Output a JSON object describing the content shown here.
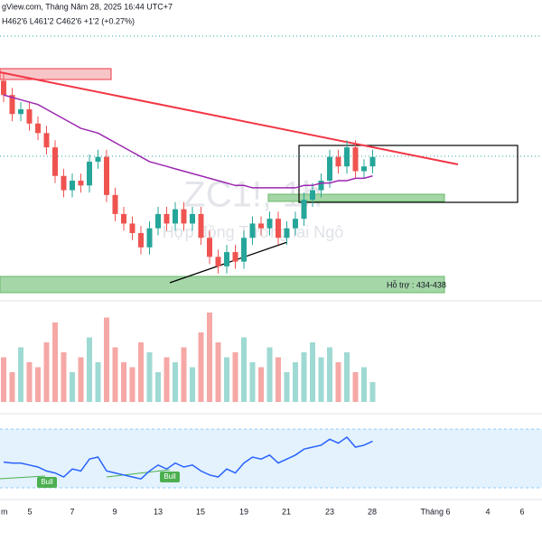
{
  "chart_data": {
    "type": "candlestick",
    "header": "gView.com, Tháng Năm 28, 2025 16:44 UTC+7",
    "ohlc_label": "H462'6  L461'2  C462'6  +1'2 (+0.27%)",
    "watermark": "ZC1!, 1h",
    "watermark_subtitle": "Hợp đồng Tương lai Ngô",
    "support_label": "Hỗ trợ : 434-438",
    "signal_labels": [
      "Bull",
      "Bull"
    ],
    "x_labels": [
      "m",
      "5",
      "7",
      "9",
      "13",
      "15",
      "19",
      "21",
      "23",
      "28",
      "Tháng 6",
      "4",
      "6"
    ],
    "ylim": [
      434,
      484
    ],
    "open": [
      479,
      476,
      472,
      473,
      470,
      468,
      465,
      459,
      456,
      458,
      457,
      462,
      463,
      455,
      451,
      449,
      447,
      444,
      448,
      451,
      449,
      452,
      449,
      451,
      446,
      442,
      440,
      443,
      441,
      446,
      449,
      448,
      450,
      446,
      448,
      450,
      454,
      456,
      458,
      463,
      461,
      465,
      460,
      461
    ],
    "high": [
      480.5,
      477.5,
      474.5,
      474.5,
      471.5,
      469.5,
      466.5,
      460.5,
      459.5,
      459.5,
      463.5,
      464.5,
      464.5,
      456.5,
      452.5,
      450.5,
      448.5,
      449.5,
      452.5,
      452.5,
      453.5,
      453.5,
      452.5,
      452.5,
      447.5,
      443.5,
      444.5,
      444.5,
      447.5,
      450.5,
      450.5,
      451.5,
      451.5,
      449.5,
      451.5,
      455.5,
      457.5,
      459.5,
      464.5,
      464.5,
      466.5,
      466.5,
      462.5,
      464.5
    ],
    "low": [
      474.5,
      470.5,
      470.5,
      468.5,
      466.5,
      463.5,
      457.5,
      454.5,
      454.5,
      455.5,
      455.5,
      460.5,
      453.5,
      449.5,
      447.5,
      445.5,
      442.5,
      442.5,
      446.5,
      447.5,
      447.5,
      447.5,
      447.5,
      444.5,
      440.5,
      438.5,
      438.5,
      439.5,
      439.5,
      444.5,
      446.5,
      446.5,
      444.5,
      444.5,
      446.5,
      448.5,
      452.5,
      454.5,
      456.5,
      459.5,
      459.5,
      458.5,
      458.5,
      459.5
    ],
    "close": [
      476,
      472,
      473,
      470,
      468,
      465,
      459,
      456,
      458,
      457,
      462,
      463,
      455,
      451,
      449,
      447,
      444,
      448,
      451,
      449,
      452,
      449,
      451,
      446,
      442,
      440,
      443,
      441,
      446,
      449,
      448,
      450,
      446,
      448,
      450,
      454,
      456,
      458,
      463,
      461,
      465,
      460,
      461,
      463
    ],
    "ma": [
      476,
      475.5,
      475,
      474.5,
      474,
      473,
      472,
      471,
      470,
      469,
      468.5,
      468,
      467,
      466,
      465,
      464,
      463,
      462,
      461.5,
      461,
      460.5,
      460,
      459.5,
      459,
      458.5,
      458,
      457.5,
      457,
      457,
      456.5,
      456.5,
      456.5,
      456.5,
      456.5,
      456.5,
      457,
      457,
      457.5,
      457.5,
      458,
      458,
      458.5,
      458.5,
      459
    ],
    "volume": [
      45,
      30,
      55,
      40,
      35,
      60,
      80,
      50,
      30,
      45,
      65,
      40,
      85,
      55,
      40,
      35,
      60,
      50,
      30,
      45,
      40,
      55,
      35,
      70,
      90,
      60,
      45,
      50,
      65,
      40,
      35,
      55,
      45,
      30,
      40,
      50,
      60,
      45,
      55,
      40,
      50,
      30,
      35,
      20
    ],
    "volume_lim": [
      0,
      100
    ],
    "oscillator": [
      45,
      44,
      44,
      42,
      40,
      36,
      34,
      30,
      38,
      36,
      48,
      50,
      36,
      34,
      32,
      30,
      28,
      36,
      42,
      38,
      44,
      40,
      42,
      36,
      32,
      30,
      38,
      34,
      44,
      50,
      48,
      52,
      44,
      48,
      52,
      58,
      60,
      62,
      68,
      64,
      70,
      60,
      62,
      66
    ],
    "oscillator_lim": [
      10,
      90
    ],
    "colors": {
      "up": "#26a69a",
      "down": "#ef5350",
      "ma": "#9c27b0",
      "resistance": "#f23645"
    }
  }
}
